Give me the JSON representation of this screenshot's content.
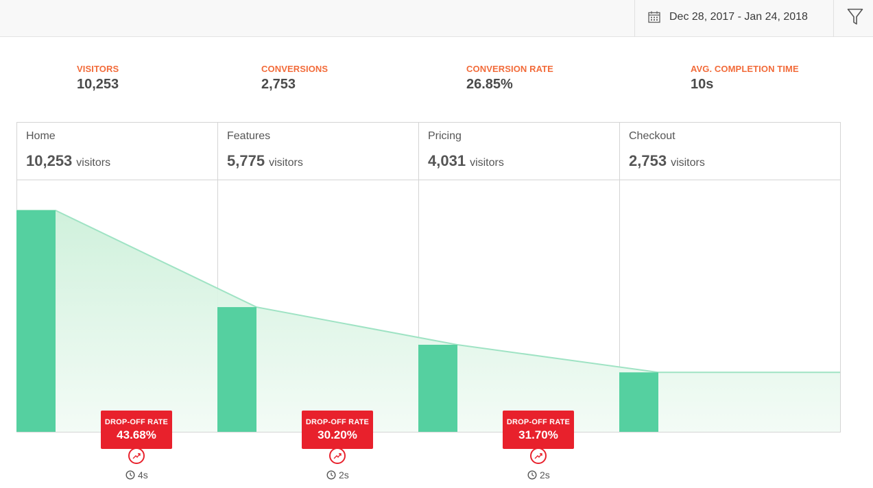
{
  "header": {
    "date_range": "Dec 28, 2017 - Jan 24, 2018",
    "calendar_icon": "calendar-icon",
    "filter_icon": "filter-icon"
  },
  "stats": [
    {
      "label": "VISITORS",
      "value": "10,253"
    },
    {
      "label": "CONVERSIONS",
      "value": "2,753"
    },
    {
      "label": "CONVERSION RATE",
      "value": "26.85%"
    },
    {
      "label": "AVG. COMPLETION TIME",
      "value": "10s"
    }
  ],
  "colors": {
    "accent": "#f26b3a",
    "bar": "#55d0a0",
    "area_line": "#9fe3c4",
    "drop": "#e8212c"
  },
  "chart_data": {
    "type": "bar",
    "categories": [
      "Home",
      "Features",
      "Pricing",
      "Checkout"
    ],
    "values": [
      10253,
      5775,
      4031,
      2753
    ],
    "unit_label": "visitors",
    "ylim": [
      0,
      10253
    ],
    "drop_offs": [
      {
        "label": "DROP-OFF RATE",
        "value": "43.68%",
        "time": "4s"
      },
      {
        "label": "DROP-OFF RATE",
        "value": "30.20%",
        "time": "2s"
      },
      {
        "label": "DROP-OFF RATE",
        "value": "31.70%",
        "time": "2s"
      }
    ]
  }
}
